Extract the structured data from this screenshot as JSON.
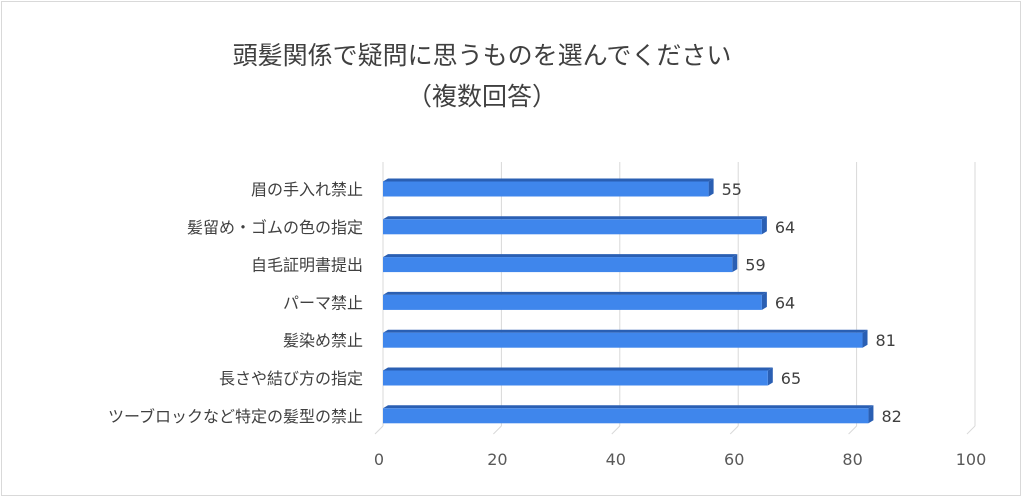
{
  "chart_data": {
    "type": "bar",
    "orientation": "horizontal",
    "title_lines": [
      "頭髪関係で疑問に思うものを選んでください",
      "（複数回答）"
    ],
    "categories": [
      "眉の手入れ禁止",
      "髪留め・ゴムの色の指定",
      "自毛証明書提出",
      "パーマ禁止",
      "髪染め禁止",
      "長さや結び方の指定",
      "ツーブロックなど特定の髪型の禁止"
    ],
    "values": [
      55,
      64,
      59,
      64,
      81,
      65,
      82
    ],
    "xlim": [
      0,
      100
    ],
    "xticks": [
      "0",
      "20",
      "40",
      "60",
      "80",
      "100"
    ],
    "gridlines": true,
    "data_labels": true,
    "bar_color": "#3f86ec",
    "bar_shade_color": "#2a5fb3",
    "grid_color": "#d9d9d9"
  }
}
